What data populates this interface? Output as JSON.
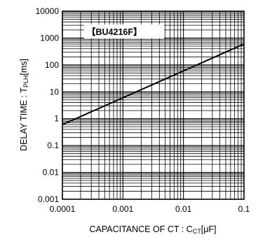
{
  "chart_data": {
    "type": "line",
    "xscale": "log",
    "yscale": "log",
    "xlim": [
      0.0001,
      0.1
    ],
    "ylim": [
      0.001,
      10000
    ],
    "grid": true,
    "x_ticks": [
      "0.0001",
      "0.001",
      "0.01",
      "0.1"
    ],
    "x_tick_values": [
      0.0001,
      0.001,
      0.01,
      0.1
    ],
    "y_ticks": [
      "0.001",
      "0.01",
      "0.1",
      "1",
      "10",
      "100",
      "1000",
      "10000"
    ],
    "y_tick_values": [
      0.001,
      0.01,
      0.1,
      1,
      10,
      100,
      1000,
      10000
    ],
    "xlabel": {
      "main": "CAPACITANCE OF CT : C",
      "sub": "CT",
      "unit": "[μF]"
    },
    "ylabel": {
      "main": "DELAY TIME : T",
      "sub": "PLH",
      "unit": "[ms]"
    },
    "annotation": "【BU4216F】",
    "series": [
      {
        "x": [
          0.0001,
          0.1
        ],
        "y": [
          0.6,
          600
        ],
        "color": "#000000"
      }
    ]
  }
}
